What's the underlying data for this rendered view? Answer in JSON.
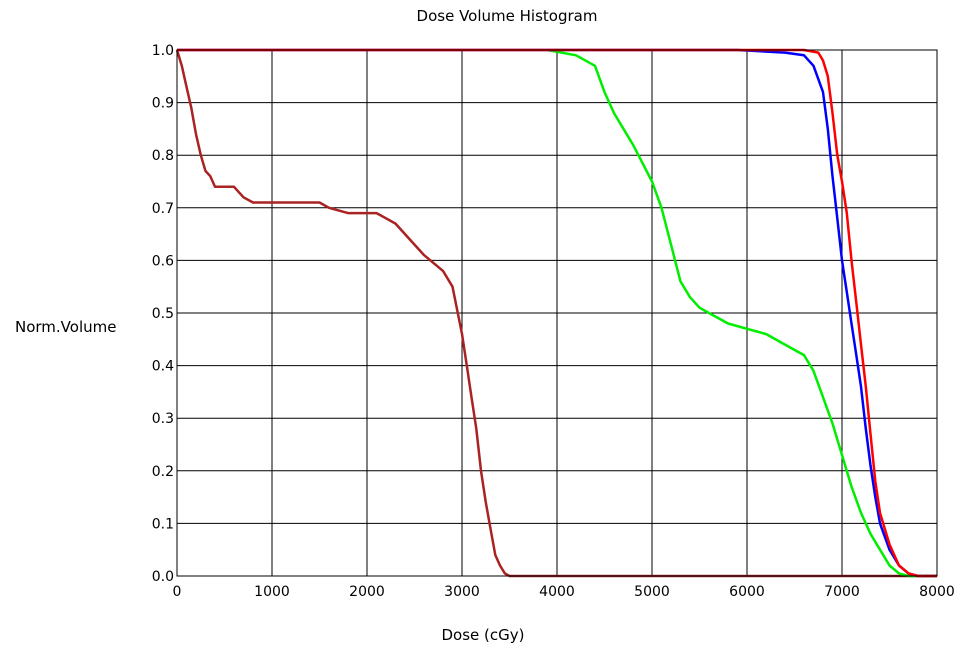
{
  "chart_data": {
    "type": "line",
    "title": "Dose Volume Histogram",
    "xlabel": "Dose (cGy)",
    "ylabel": "Norm.Volume",
    "xlim": [
      0,
      8000
    ],
    "ylim": [
      0.0,
      1.0
    ],
    "x_ticks": [
      "0",
      "1000",
      "2000",
      "3000",
      "4000",
      "5000",
      "6000",
      "7000",
      "8000"
    ],
    "y_ticks": [
      "0.0",
      "0.1",
      "0.2",
      "0.3",
      "0.4",
      "0.5",
      "0.6",
      "0.7",
      "0.8",
      "0.9",
      "1.0"
    ],
    "grid": true,
    "legend": false,
    "series": [
      {
        "color": "#aa2222",
        "points": [
          [
            0,
            1.0
          ],
          [
            50,
            0.97
          ],
          [
            100,
            0.93
          ],
          [
            150,
            0.89
          ],
          [
            200,
            0.84
          ],
          [
            250,
            0.8
          ],
          [
            300,
            0.77
          ],
          [
            350,
            0.76
          ],
          [
            400,
            0.74
          ],
          [
            600,
            0.74
          ],
          [
            700,
            0.72
          ],
          [
            800,
            0.71
          ],
          [
            1500,
            0.71
          ],
          [
            1600,
            0.7
          ],
          [
            1800,
            0.69
          ],
          [
            2100,
            0.69
          ],
          [
            2200,
            0.68
          ],
          [
            2300,
            0.67
          ],
          [
            2400,
            0.65
          ],
          [
            2500,
            0.63
          ],
          [
            2600,
            0.61
          ],
          [
            2800,
            0.58
          ],
          [
            2900,
            0.55
          ],
          [
            3000,
            0.46
          ],
          [
            3050,
            0.4
          ],
          [
            3100,
            0.34
          ],
          [
            3150,
            0.28
          ],
          [
            3200,
            0.2
          ],
          [
            3250,
            0.14
          ],
          [
            3300,
            0.09
          ],
          [
            3350,
            0.04
          ],
          [
            3400,
            0.02
          ],
          [
            3450,
            0.005
          ],
          [
            3500,
            0.0
          ],
          [
            8000,
            0.0
          ]
        ]
      },
      {
        "color": "#00ee00",
        "points": [
          [
            3900,
            1.0
          ],
          [
            4200,
            0.99
          ],
          [
            4400,
            0.97
          ],
          [
            4500,
            0.92
          ],
          [
            4600,
            0.88
          ],
          [
            4800,
            0.82
          ],
          [
            5000,
            0.75
          ],
          [
            5100,
            0.7
          ],
          [
            5200,
            0.63
          ],
          [
            5300,
            0.56
          ],
          [
            5400,
            0.53
          ],
          [
            5500,
            0.51
          ],
          [
            5600,
            0.5
          ],
          [
            5800,
            0.48
          ],
          [
            6000,
            0.47
          ],
          [
            6200,
            0.46
          ],
          [
            6400,
            0.44
          ],
          [
            6600,
            0.42
          ],
          [
            6700,
            0.39
          ],
          [
            6800,
            0.34
          ],
          [
            6900,
            0.29
          ],
          [
            7000,
            0.23
          ],
          [
            7100,
            0.17
          ],
          [
            7200,
            0.12
          ],
          [
            7300,
            0.08
          ],
          [
            7400,
            0.05
          ],
          [
            7500,
            0.02
          ],
          [
            7600,
            0.005
          ],
          [
            7700,
            0.0
          ],
          [
            8000,
            0.0
          ]
        ]
      },
      {
        "color": "#0000ff",
        "points": [
          [
            0,
            1.0
          ],
          [
            5900,
            1.0
          ],
          [
            6400,
            0.995
          ],
          [
            6600,
            0.99
          ],
          [
            6700,
            0.97
          ],
          [
            6800,
            0.92
          ],
          [
            6850,
            0.85
          ],
          [
            6900,
            0.76
          ],
          [
            6950,
            0.68
          ],
          [
            7000,
            0.6
          ],
          [
            7050,
            0.54
          ],
          [
            7100,
            0.48
          ],
          [
            7150,
            0.42
          ],
          [
            7200,
            0.36
          ],
          [
            7250,
            0.28
          ],
          [
            7300,
            0.21
          ],
          [
            7350,
            0.15
          ],
          [
            7400,
            0.1
          ],
          [
            7500,
            0.05
          ],
          [
            7600,
            0.02
          ],
          [
            7700,
            0.005
          ],
          [
            7800,
            0.0
          ],
          [
            8000,
            0.0
          ]
        ]
      },
      {
        "color": "#ff0000",
        "points": [
          [
            0,
            1.0
          ],
          [
            6600,
            1.0
          ],
          [
            6750,
            0.995
          ],
          [
            6800,
            0.98
          ],
          [
            6850,
            0.95
          ],
          [
            6900,
            0.88
          ],
          [
            6950,
            0.8
          ],
          [
            7000,
            0.75
          ],
          [
            7050,
            0.69
          ],
          [
            7100,
            0.6
          ],
          [
            7150,
            0.52
          ],
          [
            7200,
            0.44
          ],
          [
            7250,
            0.36
          ],
          [
            7300,
            0.27
          ],
          [
            7350,
            0.18
          ],
          [
            7400,
            0.12
          ],
          [
            7500,
            0.06
          ],
          [
            7600,
            0.02
          ],
          [
            7700,
            0.005
          ],
          [
            7800,
            0.0
          ],
          [
            8000,
            0.0
          ]
        ]
      }
    ]
  }
}
